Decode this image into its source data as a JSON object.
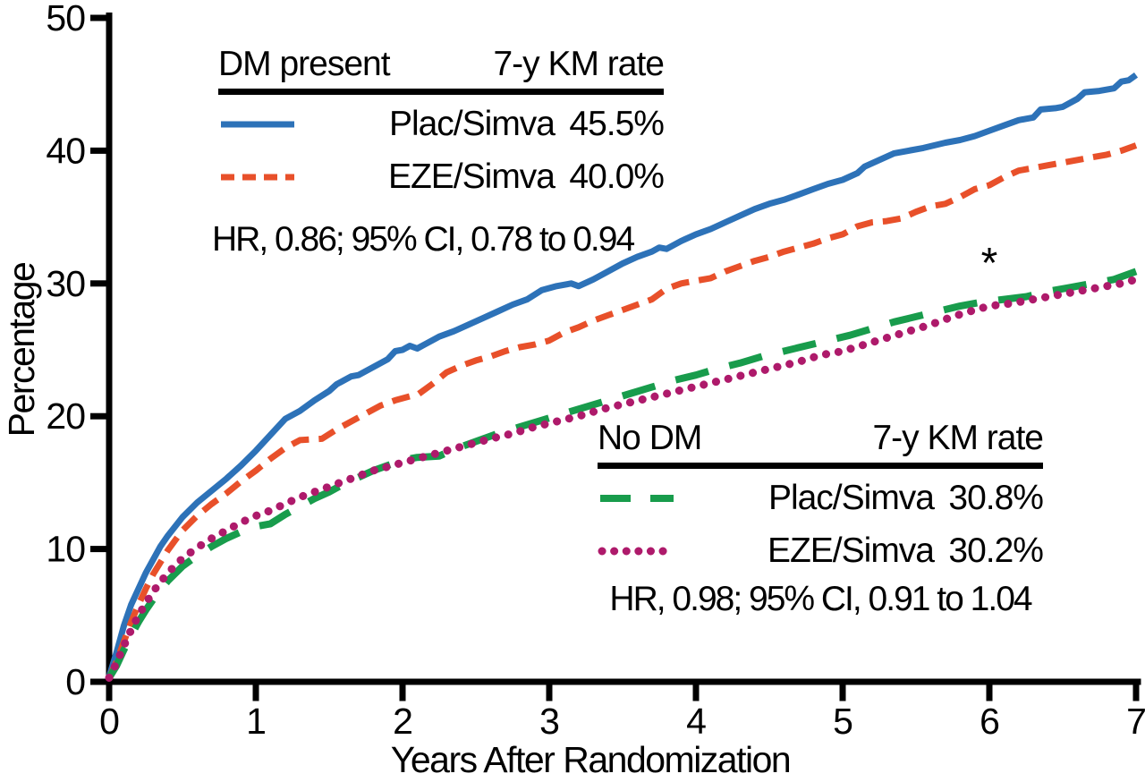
{
  "figure": {
    "background": "#ffffff",
    "axis_color": "#000000"
  },
  "legend_dm": {
    "group_label": "DM present",
    "rate_header": "7-y KM rate",
    "rows": [
      {
        "label": "Plac/Simva",
        "rate": "45.5%"
      },
      {
        "label": "EZE/Simva",
        "rate": "40.0%"
      }
    ],
    "hr_text": "HR, 0.86; 95% CI, 0.78 to 0.94"
  },
  "legend_nodm": {
    "group_label": "No DM",
    "rate_header": "7-y KM rate",
    "rows": [
      {
        "label": "Plac/Simva",
        "rate": "30.8%"
      },
      {
        "label": "EZE/Simva",
        "rate": "30.2%"
      }
    ],
    "hr_text": "HR, 0.98; 95% CI, 0.91 to 1.04"
  },
  "chart_data": {
    "type": "line",
    "title": "",
    "xlabel": "Years After Randomization",
    "ylabel": "Percentage",
    "xlim": [
      0,
      7
    ],
    "ylim": [
      0,
      50
    ],
    "xticks": [
      0,
      1,
      2,
      3,
      4,
      5,
      6,
      7
    ],
    "yticks": [
      0,
      10,
      20,
      30,
      40,
      50
    ],
    "grid": false,
    "legend_position": "two-inset-tables",
    "annotations": [
      {
        "x": 6.0,
        "y": 31.8,
        "text": "*"
      }
    ],
    "series": [
      {
        "name": "DM present Plac/Simva",
        "color": "#2D72B8",
        "style": "solid",
        "km_rate_7y": "45.5%",
        "hr_group": "HR, 0.86; 95% CI, 0.78 to 0.94",
        "points": [
          [
            0,
            0.4
          ],
          [
            0.05,
            2.2
          ],
          [
            0.1,
            4.2
          ],
          [
            0.15,
            5.8
          ],
          [
            0.2,
            7.0
          ],
          [
            0.25,
            8.2
          ],
          [
            0.3,
            9.2
          ],
          [
            0.35,
            10.2
          ],
          [
            0.4,
            11.0
          ],
          [
            0.5,
            12.4
          ],
          [
            0.6,
            13.5
          ],
          [
            0.7,
            14.4
          ],
          [
            0.8,
            15.3
          ],
          [
            0.9,
            16.3
          ],
          [
            1.0,
            17.4
          ],
          [
            1.1,
            18.6
          ],
          [
            1.2,
            19.8
          ],
          [
            1.3,
            20.4
          ],
          [
            1.4,
            21.2
          ],
          [
            1.5,
            21.9
          ],
          [
            1.55,
            22.4
          ],
          [
            1.65,
            23.0
          ],
          [
            1.7,
            23.1
          ],
          [
            1.8,
            23.7
          ],
          [
            1.9,
            24.3
          ],
          [
            1.95,
            24.9
          ],
          [
            2.0,
            25.0
          ],
          [
            2.05,
            25.3
          ],
          [
            2.1,
            25.1
          ],
          [
            2.15,
            25.4
          ],
          [
            2.25,
            26.0
          ],
          [
            2.35,
            26.4
          ],
          [
            2.45,
            26.9
          ],
          [
            2.55,
            27.4
          ],
          [
            2.65,
            27.9
          ],
          [
            2.75,
            28.4
          ],
          [
            2.85,
            28.8
          ],
          [
            2.95,
            29.5
          ],
          [
            3.05,
            29.8
          ],
          [
            3.15,
            30.0
          ],
          [
            3.2,
            29.8
          ],
          [
            3.3,
            30.3
          ],
          [
            3.4,
            30.9
          ],
          [
            3.5,
            31.5
          ],
          [
            3.6,
            32.0
          ],
          [
            3.7,
            32.4
          ],
          [
            3.75,
            32.7
          ],
          [
            3.8,
            32.6
          ],
          [
            3.9,
            33.2
          ],
          [
            4.0,
            33.7
          ],
          [
            4.1,
            34.1
          ],
          [
            4.2,
            34.6
          ],
          [
            4.3,
            35.1
          ],
          [
            4.4,
            35.6
          ],
          [
            4.5,
            36.0
          ],
          [
            4.6,
            36.3
          ],
          [
            4.7,
            36.7
          ],
          [
            4.8,
            37.1
          ],
          [
            4.9,
            37.5
          ],
          [
            5.0,
            37.8
          ],
          [
            5.1,
            38.3
          ],
          [
            5.15,
            38.8
          ],
          [
            5.25,
            39.3
          ],
          [
            5.35,
            39.8
          ],
          [
            5.45,
            40.0
          ],
          [
            5.55,
            40.2
          ],
          [
            5.7,
            40.6
          ],
          [
            5.8,
            40.8
          ],
          [
            5.9,
            41.1
          ],
          [
            6.0,
            41.5
          ],
          [
            6.1,
            41.9
          ],
          [
            6.2,
            42.3
          ],
          [
            6.3,
            42.5
          ],
          [
            6.35,
            43.1
          ],
          [
            6.45,
            43.2
          ],
          [
            6.5,
            43.3
          ],
          [
            6.6,
            43.9
          ],
          [
            6.65,
            44.4
          ],
          [
            6.75,
            44.5
          ],
          [
            6.85,
            44.7
          ],
          [
            6.9,
            45.2
          ],
          [
            6.95,
            45.3
          ],
          [
            7.0,
            45.7
          ]
        ]
      },
      {
        "name": "DM present EZE/Simva",
        "color": "#E8502A",
        "style": "dashed",
        "km_rate_7y": "40.0%",
        "hr_group": "HR, 0.86; 95% CI, 0.78 to 0.94",
        "points": [
          [
            0,
            0.3
          ],
          [
            0.05,
            1.5
          ],
          [
            0.1,
            3.0
          ],
          [
            0.15,
            4.5
          ],
          [
            0.2,
            5.8
          ],
          [
            0.25,
            7.0
          ],
          [
            0.3,
            8.1
          ],
          [
            0.35,
            9.0
          ],
          [
            0.4,
            9.9
          ],
          [
            0.5,
            11.4
          ],
          [
            0.6,
            12.5
          ],
          [
            0.7,
            13.4
          ],
          [
            0.8,
            14.2
          ],
          [
            0.9,
            15.1
          ],
          [
            1.0,
            15.9
          ],
          [
            1.1,
            16.8
          ],
          [
            1.2,
            17.6
          ],
          [
            1.3,
            18.2
          ],
          [
            1.45,
            18.3
          ],
          [
            1.55,
            19.0
          ],
          [
            1.65,
            19.6
          ],
          [
            1.75,
            20.2
          ],
          [
            1.85,
            20.8
          ],
          [
            1.95,
            21.2
          ],
          [
            2.05,
            21.5
          ],
          [
            2.1,
            21.6
          ],
          [
            2.2,
            22.4
          ],
          [
            2.3,
            23.3
          ],
          [
            2.4,
            23.8
          ],
          [
            2.5,
            24.2
          ],
          [
            2.6,
            24.5
          ],
          [
            2.7,
            24.9
          ],
          [
            2.8,
            25.2
          ],
          [
            2.9,
            25.4
          ],
          [
            3.0,
            25.7
          ],
          [
            3.1,
            26.3
          ],
          [
            3.2,
            26.7
          ],
          [
            3.3,
            27.2
          ],
          [
            3.4,
            27.6
          ],
          [
            3.5,
            28.0
          ],
          [
            3.6,
            28.4
          ],
          [
            3.7,
            28.8
          ],
          [
            3.8,
            29.6
          ],
          [
            3.9,
            30.0
          ],
          [
            4.0,
            30.2
          ],
          [
            4.1,
            30.4
          ],
          [
            4.2,
            30.9
          ],
          [
            4.3,
            31.3
          ],
          [
            4.4,
            31.7
          ],
          [
            4.5,
            32.0
          ],
          [
            4.6,
            32.4
          ],
          [
            4.7,
            32.7
          ],
          [
            4.8,
            33.0
          ],
          [
            4.9,
            33.4
          ],
          [
            5.0,
            33.7
          ],
          [
            5.1,
            34.3
          ],
          [
            5.2,
            34.6
          ],
          [
            5.3,
            34.7
          ],
          [
            5.4,
            34.9
          ],
          [
            5.5,
            35.4
          ],
          [
            5.6,
            35.8
          ],
          [
            5.7,
            36.0
          ],
          [
            5.8,
            36.5
          ],
          [
            5.9,
            37.1
          ],
          [
            6.0,
            37.4
          ],
          [
            6.1,
            38.0
          ],
          [
            6.2,
            38.5
          ],
          [
            6.3,
            38.7
          ],
          [
            6.4,
            38.9
          ],
          [
            6.5,
            39.1
          ],
          [
            6.6,
            39.3
          ],
          [
            6.7,
            39.5
          ],
          [
            6.8,
            39.7
          ],
          [
            6.9,
            40.0
          ],
          [
            7.0,
            40.4
          ]
        ]
      },
      {
        "name": "No DM Plac/Simva",
        "color": "#189C4C",
        "style": "long-dash",
        "km_rate_7y": "30.8%",
        "hr_group": "HR, 0.98; 95% CI, 0.91 to 1.04",
        "points": [
          [
            0,
            0.3
          ],
          [
            0.05,
            1.2
          ],
          [
            0.1,
            2.4
          ],
          [
            0.15,
            3.5
          ],
          [
            0.2,
            4.5
          ],
          [
            0.25,
            5.4
          ],
          [
            0.3,
            6.2
          ],
          [
            0.35,
            6.9
          ],
          [
            0.4,
            7.6
          ],
          [
            0.5,
            8.7
          ],
          [
            0.6,
            9.5
          ],
          [
            0.7,
            10.2
          ],
          [
            0.8,
            10.8
          ],
          [
            0.9,
            11.3
          ],
          [
            1.0,
            11.7
          ],
          [
            1.1,
            11.9
          ],
          [
            1.2,
            12.6
          ],
          [
            1.3,
            13.2
          ],
          [
            1.4,
            13.8
          ],
          [
            1.5,
            14.3
          ],
          [
            1.6,
            14.9
          ],
          [
            1.7,
            15.4
          ],
          [
            1.8,
            15.9
          ],
          [
            1.9,
            16.3
          ],
          [
            2.0,
            16.7
          ],
          [
            2.1,
            16.9
          ],
          [
            2.25,
            17.0
          ],
          [
            2.35,
            17.5
          ],
          [
            2.5,
            18.1
          ],
          [
            2.65,
            18.7
          ],
          [
            2.8,
            19.2
          ],
          [
            2.95,
            19.7
          ],
          [
            3.1,
            20.2
          ],
          [
            3.25,
            20.7
          ],
          [
            3.4,
            21.2
          ],
          [
            3.55,
            21.7
          ],
          [
            3.7,
            22.2
          ],
          [
            3.85,
            22.7
          ],
          [
            4.0,
            23.1
          ],
          [
            4.15,
            23.6
          ],
          [
            4.3,
            24.0
          ],
          [
            4.45,
            24.5
          ],
          [
            4.6,
            24.9
          ],
          [
            4.75,
            25.3
          ],
          [
            4.9,
            25.7
          ],
          [
            5.05,
            26.1
          ],
          [
            5.2,
            26.6
          ],
          [
            5.35,
            27.1
          ],
          [
            5.5,
            27.5
          ],
          [
            5.65,
            27.9
          ],
          [
            5.8,
            28.3
          ],
          [
            5.95,
            28.6
          ],
          [
            6.1,
            28.8
          ],
          [
            6.25,
            29.0
          ],
          [
            6.4,
            29.4
          ],
          [
            6.55,
            29.7
          ],
          [
            6.7,
            30.0
          ],
          [
            6.85,
            30.3
          ],
          [
            7.0,
            30.9
          ]
        ]
      },
      {
        "name": "No DM EZE/Simva",
        "color": "#AE1A6B",
        "style": "dotted",
        "km_rate_7y": "30.2%",
        "hr_group": "HR, 0.98; 95% CI, 0.91 to 1.04",
        "points": [
          [
            0,
            0.3
          ],
          [
            0.05,
            1.4
          ],
          [
            0.1,
            2.7
          ],
          [
            0.15,
            3.9
          ],
          [
            0.2,
            5.0
          ],
          [
            0.25,
            5.9
          ],
          [
            0.3,
            6.8
          ],
          [
            0.35,
            7.5
          ],
          [
            0.4,
            8.2
          ],
          [
            0.5,
            9.3
          ],
          [
            0.6,
            10.1
          ],
          [
            0.7,
            10.8
          ],
          [
            0.8,
            11.4
          ],
          [
            0.9,
            12.0
          ],
          [
            1.0,
            12.5
          ],
          [
            1.1,
            12.9
          ],
          [
            1.2,
            13.4
          ],
          [
            1.3,
            13.9
          ],
          [
            1.4,
            14.3
          ],
          [
            1.5,
            14.7
          ],
          [
            1.6,
            15.1
          ],
          [
            1.7,
            15.5
          ],
          [
            1.8,
            15.9
          ],
          [
            1.9,
            16.2
          ],
          [
            2.0,
            16.5
          ],
          [
            2.1,
            16.8
          ],
          [
            2.2,
            17.1
          ],
          [
            2.3,
            17.4
          ],
          [
            2.4,
            17.7
          ],
          [
            2.5,
            18.0
          ],
          [
            2.6,
            18.3
          ],
          [
            2.75,
            18.7
          ],
          [
            2.9,
            19.2
          ],
          [
            3.05,
            19.6
          ],
          [
            3.2,
            20.0
          ],
          [
            3.35,
            20.5
          ],
          [
            3.5,
            20.9
          ],
          [
            3.65,
            21.3
          ],
          [
            3.8,
            21.7
          ],
          [
            3.95,
            22.1
          ],
          [
            4.1,
            22.5
          ],
          [
            4.25,
            22.9
          ],
          [
            4.4,
            23.3
          ],
          [
            4.55,
            23.7
          ],
          [
            4.7,
            24.1
          ],
          [
            4.85,
            24.6
          ],
          [
            5.0,
            24.9
          ],
          [
            5.15,
            25.4
          ],
          [
            5.3,
            25.9
          ],
          [
            5.45,
            26.4
          ],
          [
            5.6,
            26.9
          ],
          [
            5.75,
            27.5
          ],
          [
            5.9,
            28.0
          ],
          [
            6.0,
            28.3
          ],
          [
            6.15,
            28.5
          ],
          [
            6.3,
            28.8
          ],
          [
            6.45,
            29.1
          ],
          [
            6.6,
            29.4
          ],
          [
            6.75,
            29.7
          ],
          [
            6.9,
            30.0
          ],
          [
            7.0,
            30.3
          ]
        ]
      }
    ]
  }
}
